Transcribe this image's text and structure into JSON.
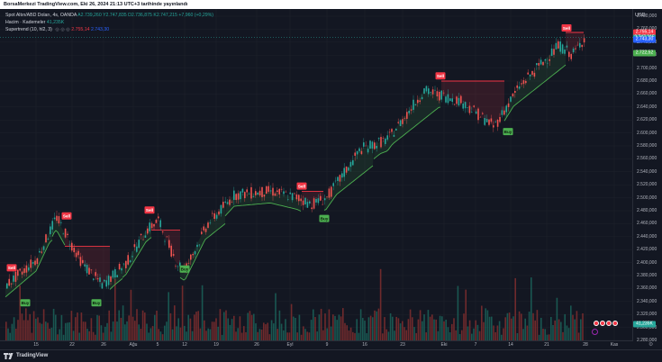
{
  "caption": "BorsaMerkezi TradingView.com, Eki 26, 2024 21:13 UTC+3 tarihinde yayınlandı",
  "legend": {
    "symbol_line": "Spot Altın/ABD Doları, 4s, OANDA",
    "ohlc_prefix": "A",
    "open": "2.739,260",
    "high_prefix": "Y",
    "high": "2.747,835",
    "low_prefix": "D",
    "low": "2.736,875",
    "close_prefix": "K",
    "close": "2.747,215",
    "change": "+7,960 (+0,29%)",
    "volume_label": "Hacim · Kademeler",
    "volume_value": "41,235K",
    "supertrend_label": "Supertrend (10, hl2, 3)",
    "supertrend_icons": "◎ ◎ ◎",
    "supertrend_red": "2.755,14",
    "supertrend_blue": "2.743,30"
  },
  "price_axis": {
    "currency": "USD",
    "ticks": [
      "2.780,000",
      "2.760,000",
      "2.740,000",
      "2.720,000",
      "2.700,000",
      "2.680,000",
      "2.660,000",
      "2.640,000",
      "2.620,000",
      "2.600,000",
      "2.580,000",
      "2.560,000",
      "2.540,000",
      "2.520,000",
      "2.500,000",
      "2.480,000",
      "2.460,000",
      "2.440,000",
      "2.420,000",
      "2.400,000",
      "2.380,000",
      "2.360,000",
      "2.340,000",
      "2.320,000",
      "2.300,000",
      "2.280,000"
    ],
    "badges": [
      {
        "text": "2.755,14",
        "color": "#f23645",
        "price": 2755.14
      },
      {
        "text": "2.747,215",
        "color": "#26a69a",
        "price": 2747.2
      },
      {
        "text": "2.743,30",
        "color": "#2962ff",
        "price": 2743.3
      },
      {
        "text": "2.722,52",
        "color": "#4caf50",
        "price": 2722.5
      },
      {
        "text": "41,235K",
        "color": "#26a69a",
        "price": 2305
      }
    ]
  },
  "time_axis": [
    "15",
    "22",
    "26",
    "Ağu",
    "5",
    "12",
    "19",
    "26",
    "Eyl",
    "9",
    "16",
    "23",
    "Eki",
    "7",
    "14",
    "21",
    "28",
    "Kas"
  ],
  "signals": [
    {
      "label": "Sell",
      "type": "sell"
    },
    {
      "label": "Buy",
      "type": "buy"
    },
    {
      "label": "Sell",
      "type": "sell"
    },
    {
      "label": "Buy",
      "type": "buy"
    },
    {
      "label": "Sell",
      "type": "sell"
    },
    {
      "label": "Buy",
      "type": "buy"
    },
    {
      "label": "Sell",
      "type": "sell"
    },
    {
      "label": "Buy",
      "type": "buy"
    },
    {
      "label": "Sell",
      "type": "sell"
    },
    {
      "label": "Buy",
      "type": "buy"
    },
    {
      "label": "Sell",
      "type": "sell"
    }
  ],
  "colors": {
    "up": "#26a69a",
    "down": "#ef5350",
    "buy": "#4caf50",
    "sell": "#f23645",
    "bg": "#131722",
    "grid": "#1e222d"
  },
  "footer": {
    "brand": "TradingView"
  },
  "chart_data": {
    "type": "candlestick",
    "symbol": "Spot Altın/ABD Doları",
    "interval": "4s",
    "ylim": [
      2280,
      2780
    ],
    "x_range": [
      "Tem 10",
      "Kas 1"
    ],
    "supertrend_params": "10, hl2, 3",
    "price_path": [
      {
        "t": "Tem 10",
        "close": 2365
      },
      {
        "t": "Tem 14",
        "close": 2405
      },
      {
        "t": "Tem 17",
        "close": 2470
      },
      {
        "t": "Tem 22",
        "close": 2400
      },
      {
        "t": "Tem 25",
        "close": 2365
      },
      {
        "t": "Tem 29",
        "close": 2400
      },
      {
        "t": "Tem 31",
        "close": 2450
      },
      {
        "t": "Ağu 2",
        "close": 2465
      },
      {
        "t": "Ağu 5",
        "close": 2400
      },
      {
        "t": "Ağu 7",
        "close": 2390
      },
      {
        "t": "Ağu 12",
        "close": 2460
      },
      {
        "t": "Ağu 19",
        "close": 2505
      },
      {
        "t": "Ağu 26",
        "close": 2510
      },
      {
        "t": "Eyl 2",
        "close": 2500
      },
      {
        "t": "Eyl 5",
        "close": 2490
      },
      {
        "t": "Eyl 9",
        "close": 2500
      },
      {
        "t": "Eyl 13",
        "close": 2575
      },
      {
        "t": "Eyl 19",
        "close": 2590
      },
      {
        "t": "Eyl 26",
        "close": 2665
      },
      {
        "t": "Eki 3",
        "close": 2650
      },
      {
        "t": "Eki 10",
        "close": 2610
      },
      {
        "t": "Eki 16",
        "close": 2670
      },
      {
        "t": "Eki 21",
        "close": 2735
      },
      {
        "t": "Eki 23",
        "close": 2720
      },
      {
        "t": "Eki 25",
        "close": 2747
      }
    ]
  }
}
